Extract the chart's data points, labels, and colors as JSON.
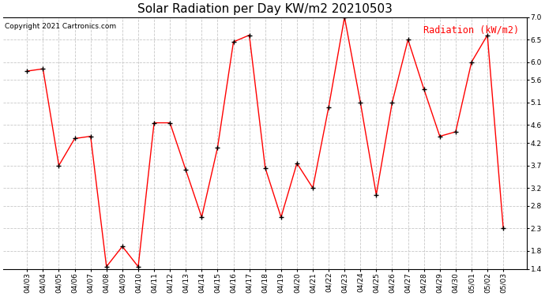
{
  "title": "Solar Radiation per Day KW/m2 20210503",
  "copyright_text": "Copyright 2021 Cartronics.com",
  "legend_label": "Radiation (kW/m2)",
  "dates": [
    "04/03",
    "04/04",
    "04/05",
    "04/06",
    "04/07",
    "04/08",
    "04/09",
    "04/10",
    "04/11",
    "04/12",
    "04/13",
    "04/14",
    "04/15",
    "04/16",
    "04/17",
    "04/18",
    "04/19",
    "04/20",
    "04/21",
    "04/22",
    "04/23",
    "04/24",
    "04/25",
    "04/26",
    "04/27",
    "04/28",
    "04/29",
    "04/30",
    "05/01",
    "05/02",
    "05/03"
  ],
  "values": [
    5.8,
    5.85,
    3.7,
    4.3,
    4.35,
    1.45,
    1.9,
    1.45,
    4.65,
    4.65,
    3.6,
    2.55,
    4.1,
    6.45,
    6.6,
    3.65,
    2.55,
    3.75,
    3.2,
    5.0,
    7.0,
    5.1,
    3.05,
    5.1,
    6.5,
    5.4,
    4.35,
    4.45,
    6.0,
    6.6,
    2.3
  ],
  "line_color": "red",
  "marker_color": "black",
  "marker": "+",
  "bg_color": "white",
  "grid_color": "#c8c8c8",
  "ylim": [
    1.4,
    7.0
  ],
  "yticks": [
    1.4,
    1.8,
    2.3,
    2.8,
    3.2,
    3.7,
    4.2,
    4.6,
    5.1,
    5.6,
    6.0,
    6.5,
    7.0
  ],
  "title_fontsize": 11,
  "copyright_fontsize": 6.5,
  "legend_fontsize": 8.5,
  "tick_fontsize": 6.5,
  "marker_size": 5,
  "linewidth": 1.0
}
